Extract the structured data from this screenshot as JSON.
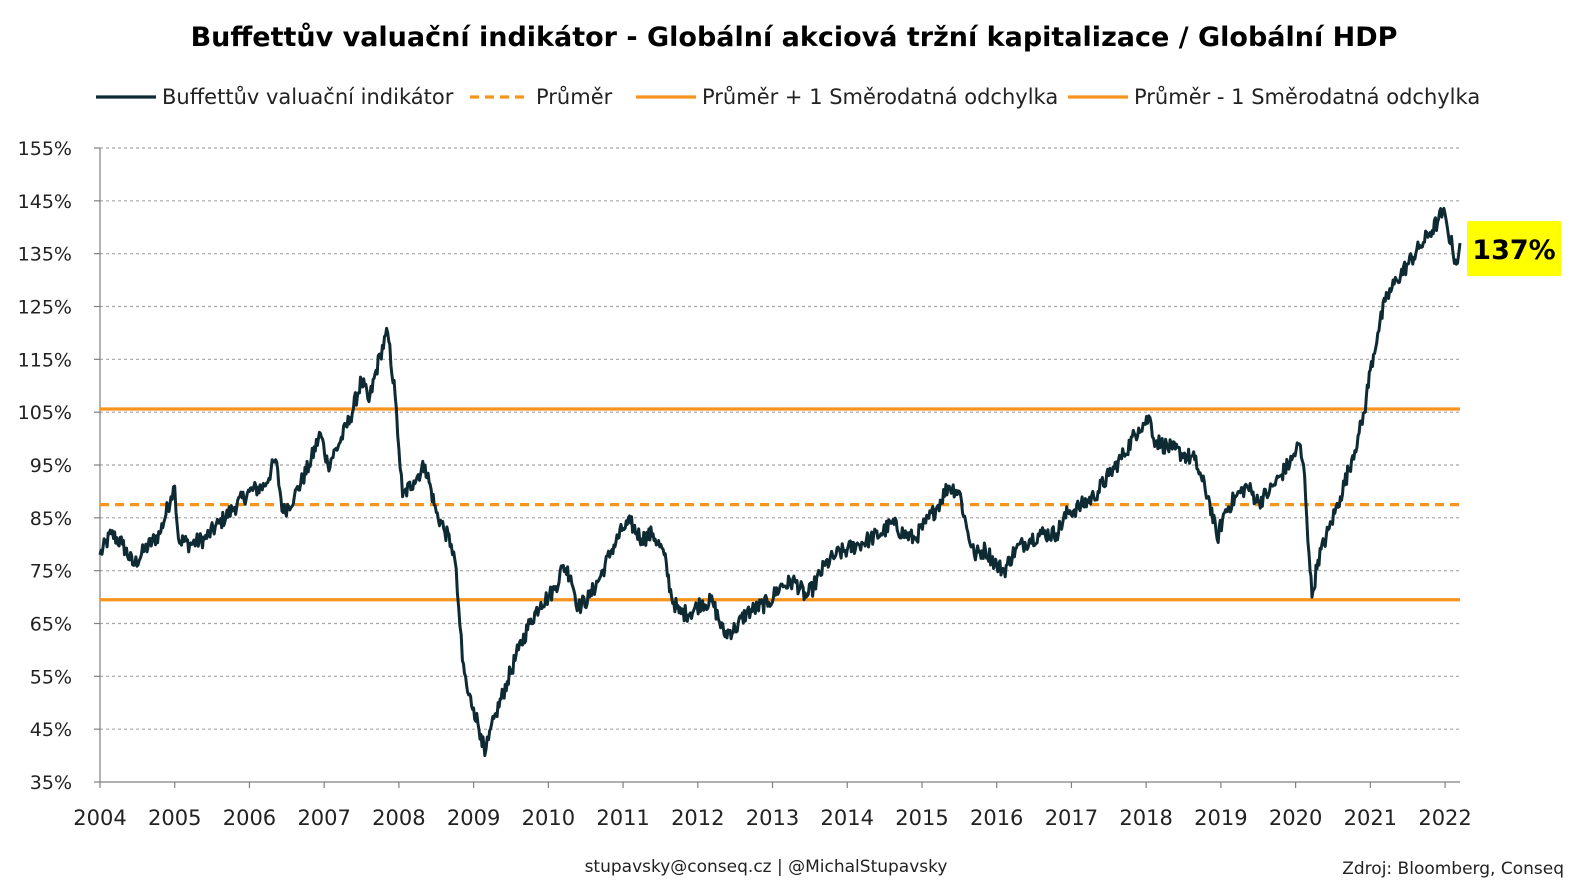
{
  "chart_data": {
    "type": "line",
    "title": "Buffettův valuační indikátor - Globální akciová tržní kapitalizace / Globální HDP",
    "legend_position": "top",
    "grid": true,
    "x_range": [
      2004,
      2022.2
    ],
    "ylim": [
      35,
      155
    ],
    "y_ticks": [
      "35%",
      "45%",
      "55%",
      "65%",
      "75%",
      "85%",
      "95%",
      "105%",
      "115%",
      "125%",
      "135%",
      "145%",
      "155%"
    ],
    "x_ticks": [
      "2004",
      "2005",
      "2006",
      "2007",
      "2008",
      "2009",
      "2010",
      "2011",
      "2012",
      "2013",
      "2014",
      "2015",
      "2016",
      "2017",
      "2018",
      "2019",
      "2020",
      "2021",
      "2022"
    ],
    "legend": [
      {
        "label": "Buffettův valuační indikátor",
        "color": "#0e2a33",
        "style": "solid"
      },
      {
        "label": "Průměr",
        "color": "#f7941d",
        "style": "dashed"
      },
      {
        "label": "Průměr + 1 Směrodatná odchylka",
        "color": "#f7941d",
        "style": "solid"
      },
      {
        "label": "Průměr - 1 Směrodatná odchylka",
        "color": "#f7941d",
        "style": "solid"
      }
    ],
    "series": [
      {
        "name": "Buffettův valuační indikátor",
        "color": "#0e2a33",
        "points": [
          [
            2004.0,
            78
          ],
          [
            2004.15,
            82
          ],
          [
            2004.3,
            80
          ],
          [
            2004.45,
            76
          ],
          [
            2004.6,
            79
          ],
          [
            2004.8,
            82
          ],
          [
            2004.95,
            89
          ],
          [
            2005.0,
            91
          ],
          [
            2005.05,
            81
          ],
          [
            2005.2,
            80
          ],
          [
            2005.4,
            81
          ],
          [
            2005.6,
            84
          ],
          [
            2005.8,
            87
          ],
          [
            2006.0,
            90
          ],
          [
            2006.2,
            91
          ],
          [
            2006.35,
            96
          ],
          [
            2006.45,
            86
          ],
          [
            2006.6,
            89
          ],
          [
            2006.8,
            95
          ],
          [
            2006.95,
            101
          ],
          [
            2007.05,
            95
          ],
          [
            2007.2,
            99
          ],
          [
            2007.35,
            104
          ],
          [
            2007.5,
            111
          ],
          [
            2007.6,
            107
          ],
          [
            2007.75,
            116
          ],
          [
            2007.85,
            120
          ],
          [
            2007.95,
            108
          ],
          [
            2008.0,
            98
          ],
          [
            2008.05,
            89
          ],
          [
            2008.2,
            92
          ],
          [
            2008.35,
            95
          ],
          [
            2008.5,
            86
          ],
          [
            2008.6,
            83
          ],
          [
            2008.7,
            80
          ],
          [
            2008.75,
            77
          ],
          [
            2008.8,
            68
          ],
          [
            2008.85,
            58
          ],
          [
            2008.92,
            52
          ],
          [
            2009.0,
            49
          ],
          [
            2009.1,
            44
          ],
          [
            2009.15,
            40
          ],
          [
            2009.2,
            43
          ],
          [
            2009.3,
            48
          ],
          [
            2009.45,
            54
          ],
          [
            2009.6,
            60
          ],
          [
            2009.75,
            65
          ],
          [
            2009.9,
            69
          ],
          [
            2010.0,
            70
          ],
          [
            2010.1,
            72
          ],
          [
            2010.2,
            76
          ],
          [
            2010.3,
            74
          ],
          [
            2010.4,
            68
          ],
          [
            2010.55,
            70
          ],
          [
            2010.7,
            74
          ],
          [
            2010.85,
            79
          ],
          [
            2011.0,
            83
          ],
          [
            2011.1,
            84
          ],
          [
            2011.25,
            81
          ],
          [
            2011.4,
            82
          ],
          [
            2011.55,
            78
          ],
          [
            2011.65,
            70
          ],
          [
            2011.75,
            67
          ],
          [
            2011.9,
            67
          ],
          [
            2012.05,
            69
          ],
          [
            2012.2,
            69
          ],
          [
            2012.35,
            63
          ],
          [
            2012.5,
            64
          ],
          [
            2012.65,
            67
          ],
          [
            2012.8,
            68
          ],
          [
            2012.95,
            69
          ],
          [
            2013.1,
            72
          ],
          [
            2013.3,
            73
          ],
          [
            2013.45,
            70
          ],
          [
            2013.55,
            72
          ],
          [
            2013.7,
            76
          ],
          [
            2013.85,
            78
          ],
          [
            2014.0,
            79
          ],
          [
            2014.15,
            80
          ],
          [
            2014.3,
            81
          ],
          [
            2014.45,
            82
          ],
          [
            2014.6,
            84
          ],
          [
            2014.75,
            82
          ],
          [
            2014.9,
            81
          ],
          [
            2015.05,
            84
          ],
          [
            2015.2,
            87
          ],
          [
            2015.35,
            91
          ],
          [
            2015.5,
            90
          ],
          [
            2015.6,
            83
          ],
          [
            2015.7,
            78
          ],
          [
            2015.85,
            79
          ],
          [
            2016.0,
            76
          ],
          [
            2016.1,
            75
          ],
          [
            2016.25,
            79
          ],
          [
            2016.45,
            81
          ],
          [
            2016.6,
            82
          ],
          [
            2016.8,
            82
          ],
          [
            2016.95,
            86
          ],
          [
            2017.1,
            87
          ],
          [
            2017.3,
            89
          ],
          [
            2017.5,
            93
          ],
          [
            2017.7,
            97
          ],
          [
            2017.9,
            102
          ],
          [
            2018.05,
            104
          ],
          [
            2018.1,
            100
          ],
          [
            2018.2,
            99
          ],
          [
            2018.35,
            98
          ],
          [
            2018.5,
            97
          ],
          [
            2018.65,
            96
          ],
          [
            2018.75,
            92
          ],
          [
            2018.85,
            88
          ],
          [
            2018.95,
            81
          ],
          [
            2019.05,
            86
          ],
          [
            2019.2,
            89
          ],
          [
            2019.35,
            91
          ],
          [
            2019.5,
            88
          ],
          [
            2019.65,
            90
          ],
          [
            2019.8,
            93
          ],
          [
            2019.95,
            96
          ],
          [
            2020.05,
            99
          ],
          [
            2020.12,
            93
          ],
          [
            2020.18,
            78
          ],
          [
            2020.22,
            70
          ],
          [
            2020.3,
            77
          ],
          [
            2020.45,
            83
          ],
          [
            2020.6,
            89
          ],
          [
            2020.75,
            96
          ],
          [
            2020.85,
            101
          ],
          [
            2020.92,
            105
          ],
          [
            2021.0,
            113
          ],
          [
            2021.1,
            120
          ],
          [
            2021.2,
            126
          ],
          [
            2021.35,
            130
          ],
          [
            2021.5,
            133
          ],
          [
            2021.65,
            136
          ],
          [
            2021.8,
            139
          ],
          [
            2021.9,
            141
          ],
          [
            2021.97,
            143
          ],
          [
            2022.03,
            140
          ],
          [
            2022.1,
            136
          ],
          [
            2022.15,
            133
          ],
          [
            2022.2,
            137
          ]
        ]
      },
      {
        "name": "Průměr",
        "color": "#f7941d",
        "style": "dashed",
        "values": [
          87.5
        ]
      },
      {
        "name": "Průměr + 1 Směrodatná odchylka",
        "color": "#f7941d",
        "style": "solid",
        "values": [
          105.6
        ]
      },
      {
        "name": "Průměr - 1 Směrodatná odchylka",
        "color": "#f7941d",
        "style": "solid",
        "values": [
          69.5
        ]
      }
    ],
    "callout": {
      "label": "137%",
      "value": 137,
      "background": "#ffff00"
    },
    "footer_center": "stupavsky@conseq.cz | @MichalStupavsky",
    "footer_right": "Zdroj: Bloomberg, Conseq"
  }
}
